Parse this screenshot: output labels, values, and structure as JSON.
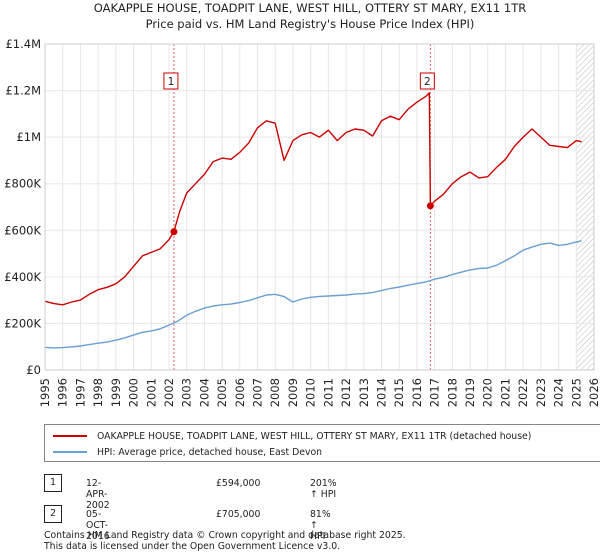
{
  "chart_data": {
    "type": "line",
    "title": "OAKAPPLE HOUSE, TOADPIT LANE, WEST HILL, OTTERY ST MARY, EX11 1TR",
    "subtitle": "Price paid vs. HM Land Registry's House Price Index (HPI)",
    "xlim": [
      1995,
      2026
    ],
    "ylim": [
      0,
      1400000
    ],
    "x_ticks": [
      "1995",
      "1996",
      "1997",
      "1998",
      "1999",
      "2000",
      "2001",
      "2002",
      "2003",
      "2004",
      "2005",
      "2006",
      "2007",
      "2008",
      "2009",
      "2010",
      "2011",
      "2012",
      "2013",
      "2014",
      "2015",
      "2016",
      "2017",
      "2018",
      "2019",
      "2020",
      "2021",
      "2022",
      "2023",
      "2024",
      "2025",
      "2026"
    ],
    "y_ticks": [
      {
        "value": 0,
        "label": "£0"
      },
      {
        "value": 200000,
        "label": "£200K"
      },
      {
        "value": 400000,
        "label": "£400K"
      },
      {
        "value": 600000,
        "label": "£600K"
      },
      {
        "value": 800000,
        "label": "£800K"
      },
      {
        "value": 1000000,
        "label": "£1M"
      },
      {
        "value": 1200000,
        "label": "£1.2M"
      },
      {
        "value": 1400000,
        "label": "£1.4M"
      }
    ],
    "grid": true,
    "forecast_start": 2025.0,
    "series": [
      {
        "name": "OAKAPPLE HOUSE, TOADPIT LANE, WEST HILL, OTTERY ST MARY, EX11 1TR (detached house)",
        "color": "#cc0000",
        "x": [
          1995.0,
          1995.5,
          1996.0,
          1996.5,
          1997.0,
          1997.5,
          1998.0,
          1998.5,
          1999.0,
          1999.5,
          2000.0,
          2000.5,
          2001.0,
          2001.5,
          2002.0,
          2002.28,
          2002.6,
          2003.0,
          2003.5,
          2004.0,
          2004.5,
          2005.0,
          2005.5,
          2006.0,
          2006.5,
          2007.0,
          2007.5,
          2008.0,
          2008.5,
          2009.0,
          2009.5,
          2010.0,
          2010.5,
          2011.0,
          2011.5,
          2012.0,
          2012.5,
          2013.0,
          2013.5,
          2014.0,
          2014.5,
          2015.0,
          2015.5,
          2016.0,
          2016.5,
          2016.7,
          2016.76,
          2017.0,
          2017.5,
          2018.0,
          2018.5,
          2019.0,
          2019.5,
          2020.0,
          2020.5,
          2021.0,
          2021.5,
          2022.0,
          2022.5,
          2023.0,
          2023.5,
          2024.0,
          2024.5,
          2025.0,
          2025.3
        ],
        "values": [
          295000,
          285000,
          280000,
          292000,
          300000,
          325000,
          345000,
          355000,
          370000,
          400000,
          445000,
          490000,
          505000,
          520000,
          560000,
          594000,
          680000,
          760000,
          800000,
          840000,
          895000,
          910000,
          905000,
          935000,
          975000,
          1040000,
          1070000,
          1060000,
          900000,
          985000,
          1010000,
          1020000,
          1000000,
          1030000,
          985000,
          1020000,
          1035000,
          1030000,
          1005000,
          1070000,
          1090000,
          1075000,
          1120000,
          1150000,
          1175000,
          1190000,
          705000,
          725000,
          755000,
          800000,
          830000,
          850000,
          825000,
          830000,
          870000,
          905000,
          960000,
          1000000,
          1035000,
          1000000,
          965000,
          960000,
          955000,
          985000,
          980000
        ]
      },
      {
        "name": "HPI: Average price, detached house, East Devon",
        "color": "#6a9fd4",
        "x": [
          1995.0,
          1995.5,
          1996.0,
          1996.5,
          1997.0,
          1997.5,
          1998.0,
          1998.5,
          1999.0,
          1999.5,
          2000.0,
          2000.5,
          2001.0,
          2001.5,
          2002.0,
          2002.5,
          2003.0,
          2003.5,
          2004.0,
          2004.5,
          2005.0,
          2005.5,
          2006.0,
          2006.5,
          2007.0,
          2007.5,
          2008.0,
          2008.5,
          2009.0,
          2009.5,
          2010.0,
          2010.5,
          2011.0,
          2011.5,
          2012.0,
          2012.5,
          2013.0,
          2013.5,
          2014.0,
          2014.5,
          2015.0,
          2015.5,
          2016.0,
          2016.5,
          2017.0,
          2017.5,
          2018.0,
          2018.5,
          2019.0,
          2019.5,
          2020.0,
          2020.5,
          2021.0,
          2021.5,
          2022.0,
          2022.5,
          2023.0,
          2023.5,
          2024.0,
          2024.5,
          2025.0,
          2025.3
        ],
        "values": [
          97000,
          95000,
          96000,
          99000,
          103000,
          109000,
          115000,
          120000,
          128000,
          138000,
          150000,
          162000,
          168000,
          177000,
          193000,
          210000,
          235000,
          252000,
          266000,
          275000,
          280000,
          283000,
          290000,
          298000,
          310000,
          322000,
          325000,
          315000,
          292000,
          305000,
          312000,
          316000,
          318000,
          320000,
          322000,
          326000,
          328000,
          333000,
          342000,
          350000,
          356000,
          364000,
          372000,
          378000,
          390000,
          398000,
          410000,
          420000,
          430000,
          436000,
          438000,
          450000,
          470000,
          490000,
          515000,
          528000,
          540000,
          545000,
          535000,
          540000,
          550000,
          555000
        ]
      }
    ],
    "transactions": [
      {
        "id": "1",
        "x": 2002.28,
        "price": 594000,
        "date": "12-APR-2002",
        "price_label": "£594,000",
        "hpi": "201% ↑ HPI"
      },
      {
        "id": "2",
        "x": 2016.76,
        "price": 705000,
        "date": "05-OCT-2016",
        "price_label": "£705,000",
        "hpi": "81% ↑ HPI"
      }
    ]
  },
  "footer": {
    "line1": "Contains HM Land Registry data © Crown copyright and database right 2025.",
    "line2": "This data is licensed under the Open Government Licence v3.0."
  }
}
